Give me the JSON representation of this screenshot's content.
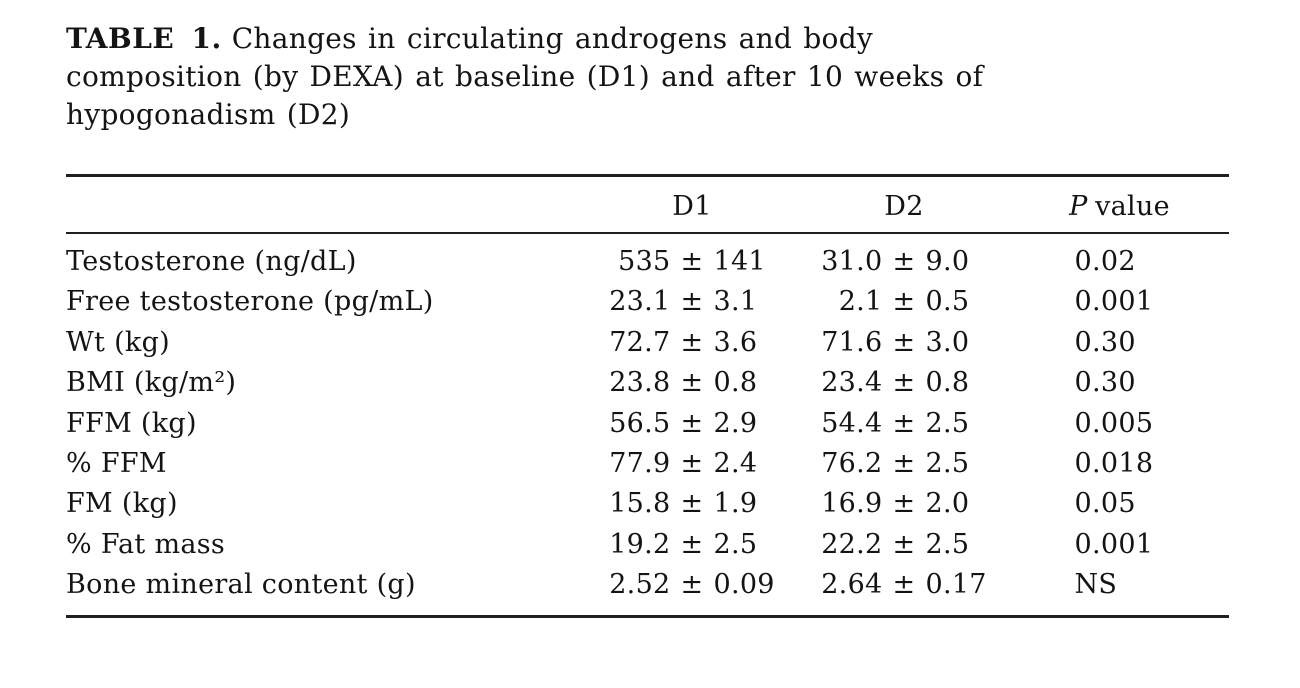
{
  "caption": {
    "label": "TABLE 1.",
    "lines": [
      "Changes in circulating androgens and body",
      "composition (by DEXA) at baseline (D1) and after 10 weeks of",
      "hypogonadism (D2)"
    ]
  },
  "table": {
    "plus_minus": "±",
    "headers": {
      "label": "",
      "d1": "D1",
      "d2": "D2",
      "p_italic": "P",
      "p_rest": "value"
    },
    "rows": [
      {
        "label": "Testosterone (ng/dL)",
        "d1": {
          "mean": "535",
          "sd": "141"
        },
        "d2": {
          "mean": "31.0",
          "sd": "9.0"
        },
        "p": "0.02"
      },
      {
        "label": "Free testosterone (pg/mL)",
        "d1": {
          "mean": "23.1",
          "sd": "3.1"
        },
        "d2": {
          "mean": "2.1",
          "sd": "0.5"
        },
        "p": "0.001"
      },
      {
        "label": "Wt (kg)",
        "d1": {
          "mean": "72.7",
          "sd": "3.6"
        },
        "d2": {
          "mean": "71.6",
          "sd": "3.0"
        },
        "p": "0.30"
      },
      {
        "label": "BMI (kg/m²)",
        "d1": {
          "mean": "23.8",
          "sd": "0.8"
        },
        "d2": {
          "mean": "23.4",
          "sd": "0.8"
        },
        "p": "0.30"
      },
      {
        "label": "FFM (kg)",
        "d1": {
          "mean": "56.5",
          "sd": "2.9"
        },
        "d2": {
          "mean": "54.4",
          "sd": "2.5"
        },
        "p": "0.005"
      },
      {
        "label": "% FFM",
        "d1": {
          "mean": "77.9",
          "sd": "2.4"
        },
        "d2": {
          "mean": "76.2",
          "sd": "2.5"
        },
        "p": "0.018"
      },
      {
        "label": "FM (kg)",
        "d1": {
          "mean": "15.8",
          "sd": "1.9"
        },
        "d2": {
          "mean": "16.9",
          "sd": "2.0"
        },
        "p": "0.05"
      },
      {
        "label": "% Fat mass",
        "d1": {
          "mean": "19.2",
          "sd": "2.5"
        },
        "d2": {
          "mean": "22.2",
          "sd": "2.5"
        },
        "p": "0.001"
      },
      {
        "label": "Bone mineral content (g)",
        "d1": {
          "mean": "2.52",
          "sd": "0.09"
        },
        "d2": {
          "mean": "2.64",
          "sd": "0.17"
        },
        "p": "NS"
      }
    ]
  }
}
